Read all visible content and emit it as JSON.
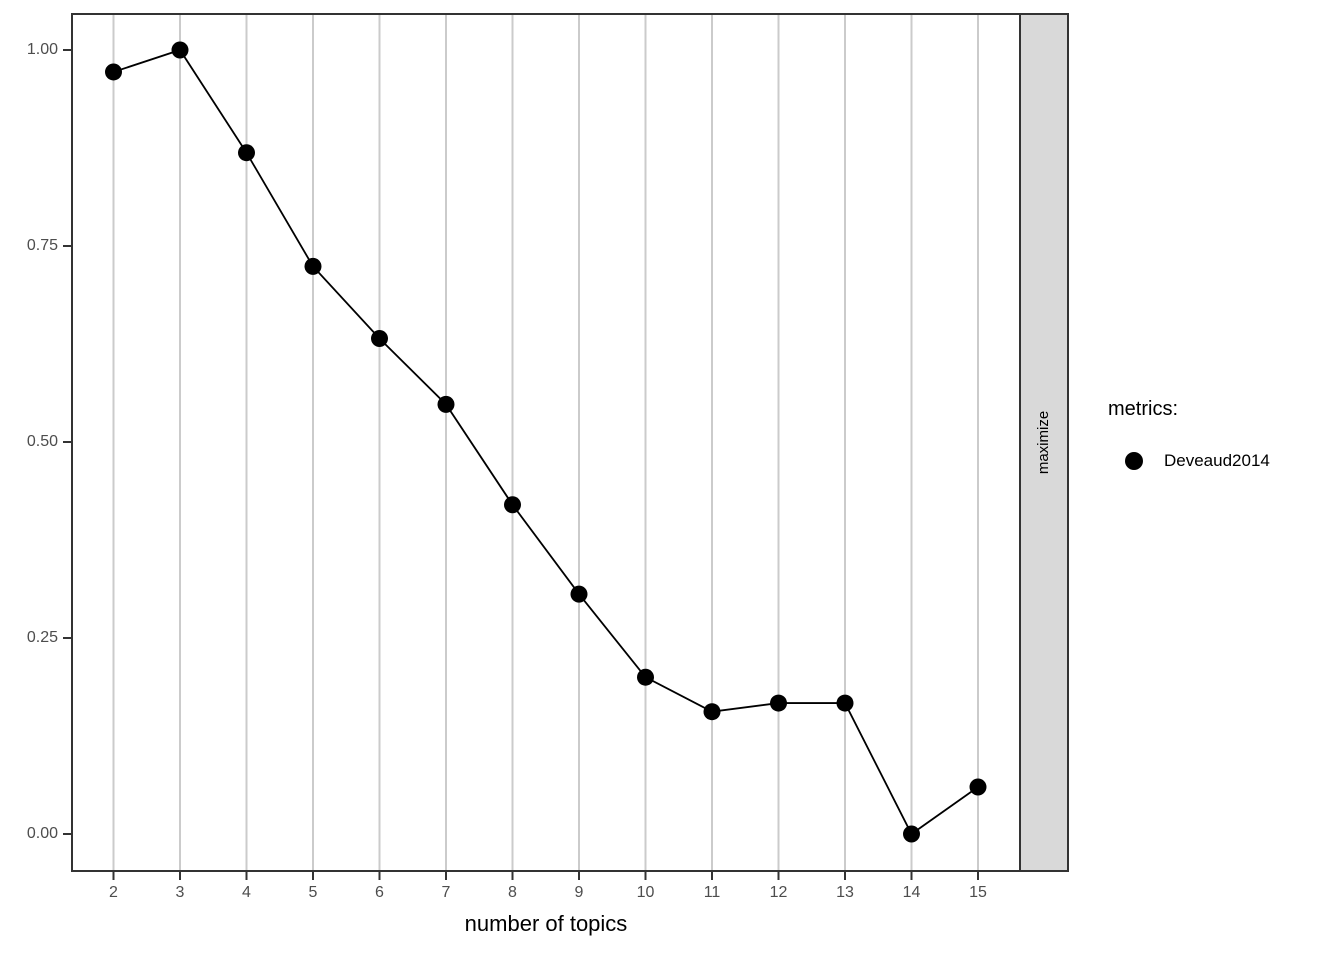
{
  "chart_data": {
    "type": "line",
    "x": [
      2,
      3,
      4,
      5,
      6,
      7,
      8,
      9,
      10,
      11,
      12,
      13,
      14,
      15
    ],
    "x_tick_labels": [
      "2",
      "3",
      "4",
      "5",
      "6",
      "7",
      "8",
      "9",
      "10",
      "11",
      "12",
      "13",
      "14",
      "15"
    ],
    "series": [
      {
        "name": "Deveaud2014",
        "values": [
          0.972,
          1.0,
          0.869,
          0.724,
          0.632,
          0.548,
          0.42,
          0.306,
          0.2,
          0.156,
          0.167,
          0.167,
          0.0,
          0.06
        ],
        "marker": "filled-circle",
        "color": "#000000"
      }
    ],
    "title": "",
    "xlabel": "number of topics",
    "ylabel": "",
    "ylim": [
      0.0,
      1.0
    ],
    "y_ticks": [
      {
        "value": 0.0,
        "label": "0.00"
      },
      {
        "value": 0.25,
        "label": "0.25"
      },
      {
        "value": 0.5,
        "label": "0.50"
      },
      {
        "value": 0.75,
        "label": "0.75"
      },
      {
        "value": 1.0,
        "label": "1.00"
      }
    ],
    "grid": "vertical-major-only",
    "legend_position": "right",
    "facet_strip": {
      "label": "maximize",
      "side": "right"
    }
  },
  "legend": {
    "title": "metrics:",
    "items": [
      {
        "label": "Deveaud2014",
        "marker": "filled-circle",
        "color": "#000000"
      }
    ]
  },
  "colors": {
    "background": "#ffffff",
    "panel_background": "#ffffff",
    "panel_border": "#333333",
    "gridline": "#cbcbcb",
    "tick_mark": "#333333",
    "tick_label": "#4d4d4d",
    "axis_title": "#000000",
    "series": "#000000",
    "strip_fill": "#d9d9d9",
    "strip_border": "#333333",
    "strip_text": "#000000"
  }
}
